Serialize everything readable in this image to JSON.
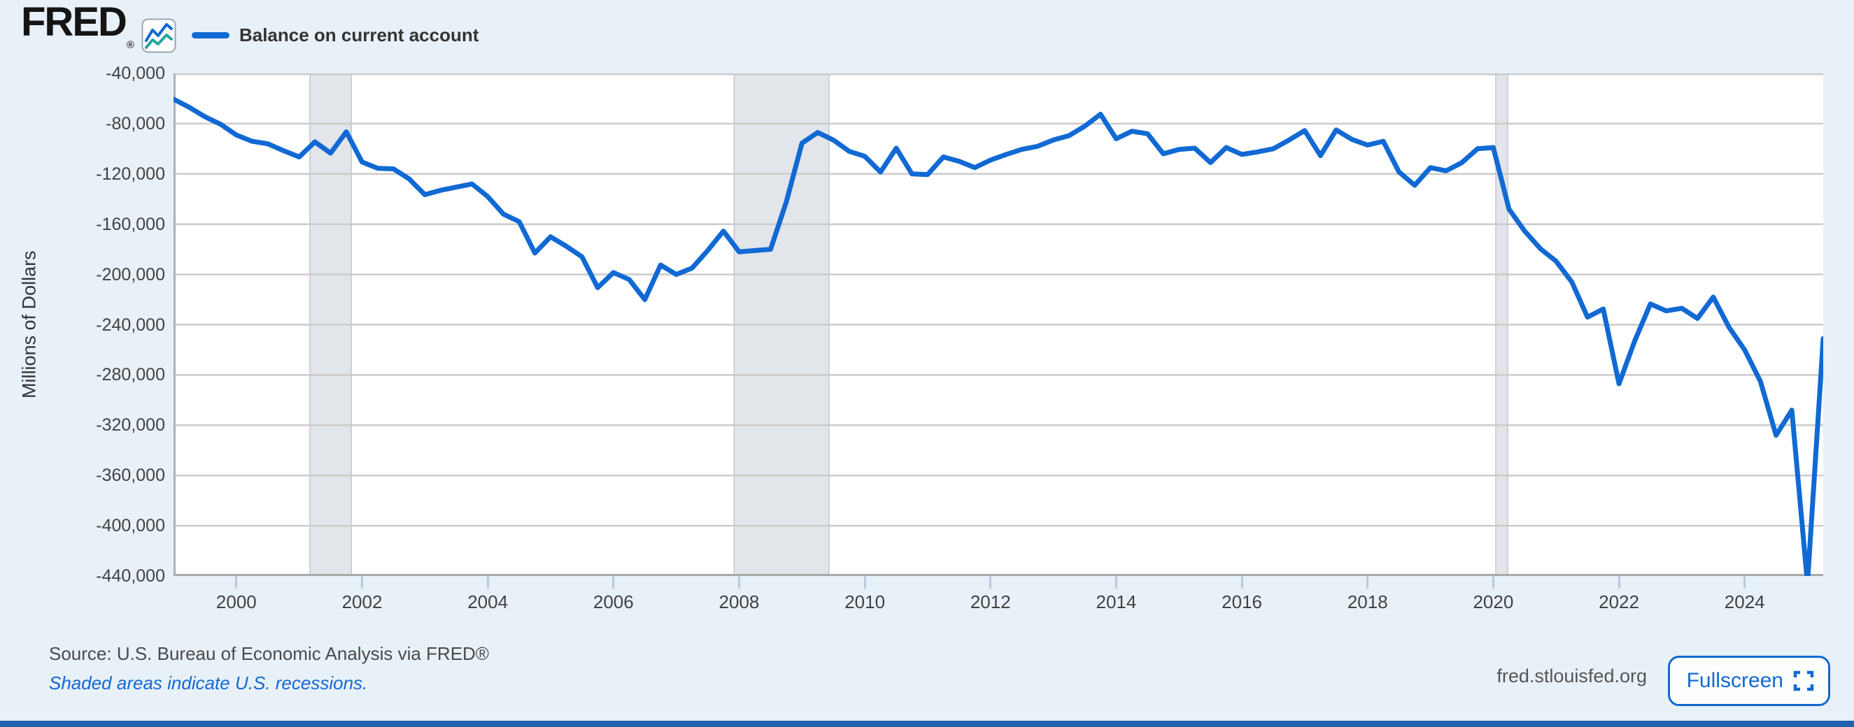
{
  "header": {
    "logo_text": "FRED",
    "reg_mark": "®",
    "legend_label": "Balance on current account"
  },
  "colors": {
    "line": "#1169d4",
    "accent_blue": "#1269d3",
    "recession_fill": "#e2e5ea",
    "recession_edge": "#c3c7ce",
    "gridline": "#cbcbcb",
    "axis": "#a9a9a9",
    "page_bg": "#e8f0f8",
    "logo_icon_blue": "#1269d3",
    "logo_icon_teal": "#26a69a"
  },
  "y_axis": {
    "title": "Millions of Dollars",
    "ticks": [
      "-40,000",
      "-80,000",
      "-120,000",
      "-160,000",
      "-200,000",
      "-240,000",
      "-280,000",
      "-320,000",
      "-360,000",
      "-400,000",
      "-440,000"
    ]
  },
  "x_axis": {
    "ticks": [
      "2000",
      "2002",
      "2004",
      "2006",
      "2008",
      "2010",
      "2012",
      "2014",
      "2016",
      "2018",
      "2020",
      "2022",
      "2024"
    ]
  },
  "chart_data": {
    "type": "line",
    "title": "Balance on current account",
    "ylabel": "Millions of Dollars",
    "units": "Millions of Dollars",
    "legend_position": "top-left",
    "grid": true,
    "ylim": [
      -440000,
      -40000
    ],
    "xlim": [
      1999.0,
      2025.25
    ],
    "x_start": 1999.0,
    "x_step": 0.25,
    "frequency": "Quarterly",
    "recessions": [
      [
        2001.17,
        2001.83
      ],
      [
        2007.92,
        2009.43
      ],
      [
        2020.04,
        2020.23
      ]
    ],
    "periods": [
      "1999Q1",
      "1999Q2",
      "1999Q3",
      "1999Q4",
      "2000Q1",
      "2000Q2",
      "2000Q3",
      "2000Q4",
      "2001Q1",
      "2001Q2",
      "2001Q3",
      "2001Q4",
      "2002Q1",
      "2002Q2",
      "2002Q3",
      "2002Q4",
      "2003Q1",
      "2003Q2",
      "2003Q3",
      "2003Q4",
      "2004Q1",
      "2004Q2",
      "2004Q3",
      "2004Q4",
      "2005Q1",
      "2005Q2",
      "2005Q3",
      "2005Q4",
      "2006Q1",
      "2006Q2",
      "2006Q3",
      "2006Q4",
      "2007Q1",
      "2007Q2",
      "2007Q3",
      "2007Q4",
      "2008Q1",
      "2008Q2",
      "2008Q3",
      "2008Q4",
      "2009Q1",
      "2009Q2",
      "2009Q3",
      "2009Q4",
      "2010Q1",
      "2010Q2",
      "2010Q3",
      "2010Q4",
      "2011Q1",
      "2011Q2",
      "2011Q3",
      "2011Q4",
      "2012Q1",
      "2012Q2",
      "2012Q3",
      "2012Q4",
      "2013Q1",
      "2013Q2",
      "2013Q3",
      "2013Q4",
      "2014Q1",
      "2014Q2",
      "2014Q3",
      "2014Q4",
      "2015Q1",
      "2015Q2",
      "2015Q3",
      "2015Q4",
      "2016Q1",
      "2016Q2",
      "2016Q3",
      "2016Q4",
      "2017Q1",
      "2017Q2",
      "2017Q3",
      "2017Q4",
      "2018Q1",
      "2018Q2",
      "2018Q3",
      "2018Q4",
      "2019Q1",
      "2019Q2",
      "2019Q3",
      "2019Q4",
      "2020Q1",
      "2020Q2",
      "2020Q3",
      "2020Q4",
      "2021Q1",
      "2021Q2",
      "2021Q3",
      "2021Q4",
      "2022Q1",
      "2022Q2",
      "2022Q3",
      "2022Q4",
      "2023Q1",
      "2023Q2",
      "2023Q3",
      "2023Q4",
      "2024Q1",
      "2024Q2",
      "2024Q3",
      "2024Q4",
      "2025Q1",
      "2025Q2"
    ],
    "values": [
      -60500,
      -67000,
      -74500,
      -80500,
      -89000,
      -94000,
      -96000,
      -101500,
      -106500,
      -94500,
      -103500,
      -86500,
      -110500,
      -115500,
      -116000,
      -124000,
      -136500,
      -133000,
      -130500,
      -128000,
      -138000,
      -152000,
      -158000,
      -183000,
      -170000,
      -177500,
      -186000,
      -210500,
      -198500,
      -204000,
      -220000,
      -192500,
      -200000,
      -195000,
      -181000,
      -165500,
      -182000,
      -181000,
      -180000,
      -142500,
      -95500,
      -87000,
      -93000,
      -102000,
      -106000,
      -118500,
      -99500,
      -120000,
      -120500,
      -106500,
      -110000,
      -115000,
      -109000,
      -104500,
      -100500,
      -98000,
      -93000,
      -89500,
      -82000,
      -72500,
      -92000,
      -86000,
      -88000,
      -104000,
      -100500,
      -99500,
      -111000,
      -99000,
      -104500,
      -102500,
      -100000,
      -93000,
      -85500,
      -105500,
      -85000,
      -92500,
      -97000,
      -94000,
      -118500,
      -129000,
      -115000,
      -117500,
      -111000,
      -100000,
      -99000,
      -148000,
      -165500,
      -179500,
      -189500,
      -206000,
      -234000,
      -227500,
      -287000,
      -253000,
      -223500,
      -229000,
      -227000,
      -235000,
      -218000,
      -242000,
      -260000,
      -285000,
      -328000,
      -308000,
      -446000,
      -251000
    ]
  },
  "footer": {
    "source_text": "Source: U.S. Bureau of Economic Analysis via FRED®",
    "recession_note": "Shaded areas indicate U.S. recessions.",
    "site_text": "fred.stlouisfed.org",
    "fullscreen_label": "Fullscreen"
  }
}
